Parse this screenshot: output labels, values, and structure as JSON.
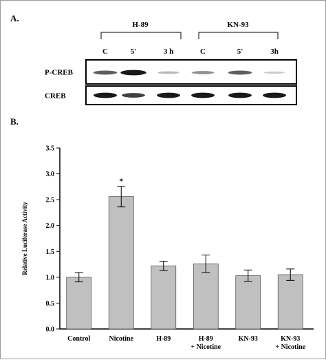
{
  "panel_a": {
    "label": "A.",
    "groups": [
      {
        "name": "H-89",
        "lanes": [
          "C",
          "5'",
          "3 h"
        ]
      },
      {
        "name": "KN-93",
        "lanes": [
          "C",
          "5'",
          "3h"
        ]
      }
    ],
    "rows": [
      {
        "name": "P-CREB",
        "band_intensity": [
          0.6,
          0.95,
          0.15,
          0.35,
          0.6,
          0.05
        ]
      },
      {
        "name": "CREB",
        "band_intensity": [
          0.95,
          0.75,
          0.95,
          0.95,
          0.95,
          0.95
        ]
      }
    ]
  },
  "panel_b": {
    "label": "B."
  },
  "chart_data": {
    "type": "bar",
    "ylabel": "Relative Luciferase Activity",
    "ylim": [
      0,
      3.5
    ],
    "yticks": [
      "0.0",
      "0.5",
      "1.0",
      "1.5",
      "2.0",
      "2.5",
      "3.0",
      "3.5"
    ],
    "categories": [
      [
        "Control"
      ],
      [
        "Nicotine"
      ],
      [
        "H-89"
      ],
      [
        "H-89",
        "+ Nicotine"
      ],
      [
        "KN-93"
      ],
      [
        "KN-93",
        "+ Nicotine"
      ]
    ],
    "values": [
      1.0,
      2.56,
      1.22,
      1.26,
      1.03,
      1.05
    ],
    "errors": [
      0.09,
      0.2,
      0.09,
      0.17,
      0.11,
      0.11
    ],
    "annotations": [
      {
        "category_index": 1,
        "text": "*"
      }
    ],
    "bar_color": "#c0c0c0"
  }
}
